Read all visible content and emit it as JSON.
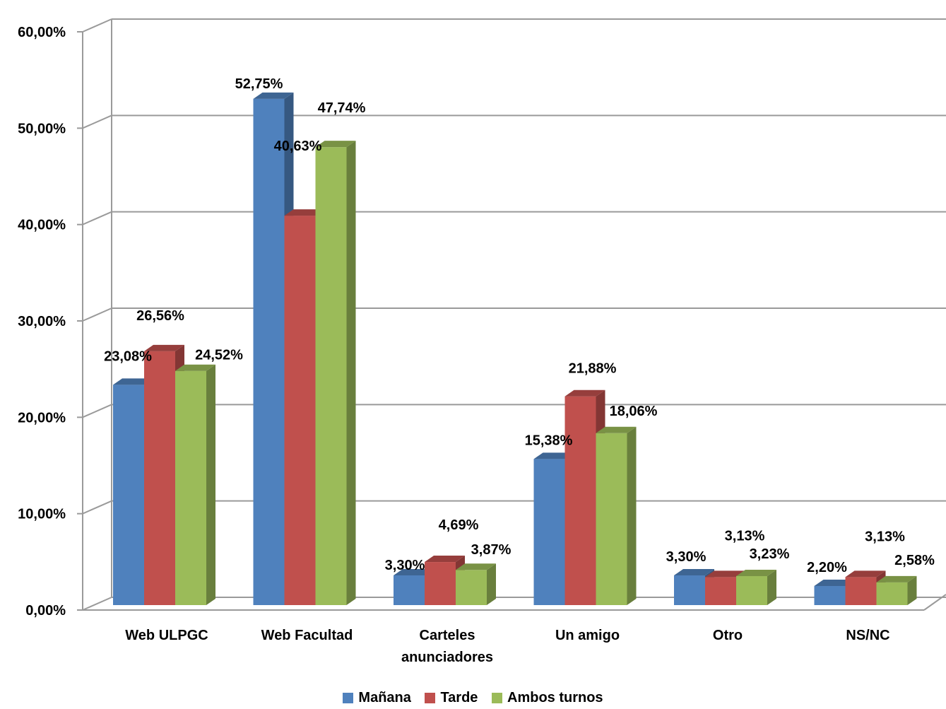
{
  "chart_data": {
    "type": "bar",
    "title": "",
    "xlabel": "",
    "ylabel": "",
    "ylim": [
      0,
      60
    ],
    "yticks": [
      "0,00%",
      "10,00%",
      "20,00%",
      "30,00%",
      "40,00%",
      "50,00%",
      "60,00%"
    ],
    "categories": [
      [
        "Web ULPGC"
      ],
      [
        "Web Facultad"
      ],
      [
        "Carteles",
        "anunciadores"
      ],
      [
        "Un amigo"
      ],
      [
        "Otro"
      ],
      [
        "NS/NC"
      ]
    ],
    "series": [
      {
        "name": "Mañana",
        "color": "#4F81BD",
        "values": [
          23.08,
          52.75,
          3.3,
          15.38,
          3.3,
          2.2
        ],
        "labels": [
          "23,08%",
          "52,75%",
          "3,30%",
          "15,38%",
          "3,30%",
          "2,20%"
        ]
      },
      {
        "name": "Tarde",
        "color": "#C0504D",
        "values": [
          26.56,
          40.63,
          4.69,
          21.88,
          3.13,
          3.13
        ],
        "labels": [
          "26,56%",
          "40,63%",
          "4,69%",
          "21,88%",
          "3,13%",
          "3,13%"
        ]
      },
      {
        "name": "Ambos turnos",
        "color": "#9BBB59",
        "values": [
          24.52,
          47.74,
          3.87,
          18.06,
          3.23,
          2.58
        ],
        "labels": [
          "24,52%",
          "47,74%",
          "3,87%",
          "18,06%",
          "3,23%",
          "2,58%"
        ]
      }
    ],
    "grid": true,
    "legend_position": "bottom",
    "style": "3d-clustered-column"
  }
}
